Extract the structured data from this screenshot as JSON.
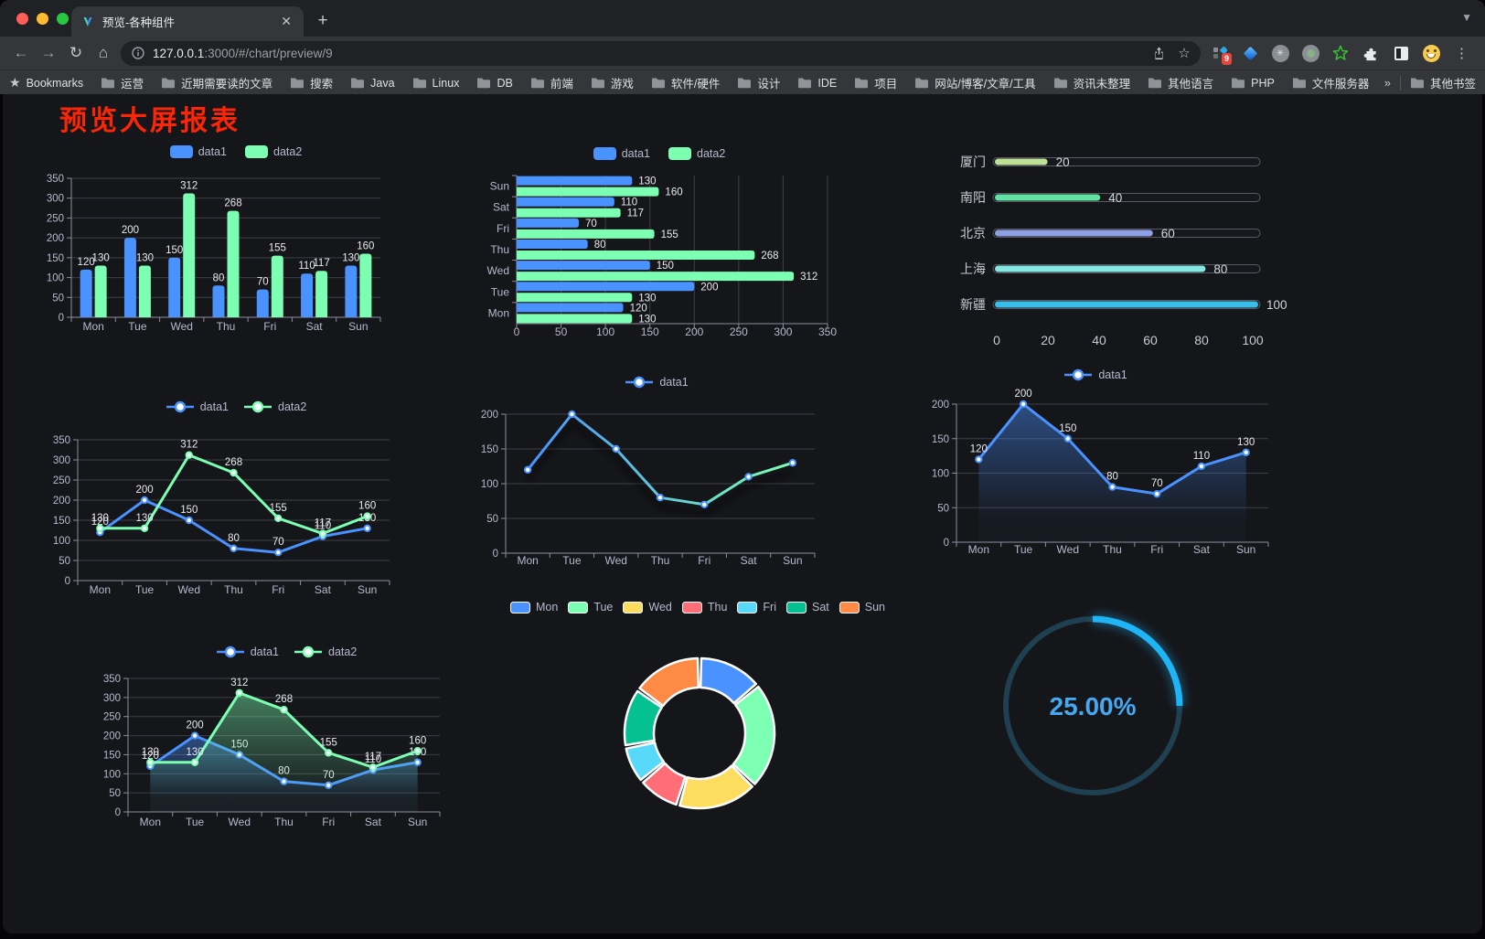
{
  "browser": {
    "tab": {
      "title": "预览-各种组件"
    },
    "url": {
      "host": "127.0.0.1",
      "rest": ":3000/#/chart/preview/9"
    },
    "bookmarks_bar": {
      "label": "Bookmarks",
      "folders": [
        "运营",
        "近期需要读的文章",
        "搜索",
        "Java",
        "Linux",
        "DB",
        "前端",
        "游戏",
        "软件/硬件",
        "设计",
        "IDE",
        "项目",
        "网站/博客/文章/工具",
        "资讯未整理",
        "其他语言",
        "PHP",
        "文件服务器"
      ],
      "overflow": "»",
      "other": "其他书签"
    },
    "extensions": [
      "apps-grid-icon",
      "gem-icon",
      "asterisk-circle-icon",
      "record-circle-icon",
      "star-outline-icon",
      "puzzle-icon",
      "reader-mode-icon",
      "emoji-icon"
    ],
    "extension_badge": "9"
  },
  "page": {
    "title": "预览大屏报表"
  },
  "chart_data": [
    {
      "id": "bar-grouped",
      "type": "bar",
      "categories": [
        "Mon",
        "Tue",
        "Wed",
        "Thu",
        "Fri",
        "Sat",
        "Sun"
      ],
      "series": [
        {
          "name": "data1",
          "color": "#4992ff",
          "values": [
            120,
            200,
            150,
            80,
            70,
            110,
            130
          ]
        },
        {
          "name": "data2",
          "color": "#7cffb2",
          "values": [
            130,
            130,
            312,
            268,
            155,
            117,
            160
          ]
        }
      ],
      "ymax": 350,
      "yticks": [
        0,
        50,
        100,
        150,
        200,
        250,
        300,
        350
      ],
      "legend": {
        "type": "rect"
      },
      "value_labels": true
    },
    {
      "id": "bar-horizontal",
      "type": "hbar",
      "categories": [
        "Mon",
        "Tue",
        "Wed",
        "Thu",
        "Fri",
        "Sat",
        "Sun"
      ],
      "series": [
        {
          "name": "data1",
          "color": "#4992ff",
          "values": [
            120,
            200,
            150,
            80,
            70,
            110,
            130
          ]
        },
        {
          "name": "data2",
          "color": "#7cffb2",
          "values": [
            130,
            130,
            312,
            268,
            155,
            117,
            160
          ]
        }
      ],
      "xmax": 350,
      "xticks": [
        0,
        50,
        100,
        150,
        200,
        250,
        300,
        350
      ],
      "legend": {
        "type": "rect"
      },
      "value_labels": true
    },
    {
      "id": "progress-bars",
      "type": "progress",
      "max": 100,
      "axis_ticks": [
        0,
        20,
        40,
        60,
        80,
        100
      ],
      "items": [
        {
          "label": "厦门",
          "value": 20,
          "color": "#bfe195"
        },
        {
          "label": "南阳",
          "value": 40,
          "color": "#60e2a5"
        },
        {
          "label": "北京",
          "value": 60,
          "color": "#8e9fe3"
        },
        {
          "label": "上海",
          "value": 80,
          "color": "#85e7e2"
        },
        {
          "label": "新疆",
          "value": 100,
          "color": "#38bde8"
        }
      ]
    },
    {
      "id": "line-two-series",
      "type": "line",
      "categories": [
        "Mon",
        "Tue",
        "Wed",
        "Thu",
        "Fri",
        "Sat",
        "Sun"
      ],
      "series": [
        {
          "name": "data1",
          "color": "#4992ff",
          "values": [
            120,
            200,
            150,
            80,
            70,
            110,
            130
          ]
        },
        {
          "name": "data2",
          "color": "#7cffb2",
          "values": [
            130,
            130,
            312,
            268,
            155,
            117,
            160
          ]
        }
      ],
      "ymax": 350,
      "yticks": [
        0,
        50,
        100,
        150,
        200,
        250,
        300,
        350
      ],
      "legend": {
        "type": "line"
      },
      "value_labels": true
    },
    {
      "id": "line-gradient",
      "type": "line",
      "categories": [
        "Mon",
        "Tue",
        "Wed",
        "Thu",
        "Fri",
        "Sat",
        "Sun"
      ],
      "series": [
        {
          "name": "data1",
          "color": "#4992ff",
          "values": [
            120,
            200,
            150,
            80,
            70,
            110,
            130
          ],
          "gradient_stroke": [
            "#4992ff",
            "#7cffb2"
          ],
          "shadow": true
        }
      ],
      "ymax": 200,
      "yticks": [
        0,
        50,
        100,
        150,
        200
      ],
      "legend": {
        "type": "line"
      },
      "value_labels": false
    },
    {
      "id": "line-area-single",
      "type": "line",
      "categories": [
        "Mon",
        "Tue",
        "Wed",
        "Thu",
        "Fri",
        "Sat",
        "Sun"
      ],
      "series": [
        {
          "name": "data1",
          "color": "#4992ff",
          "values": [
            120,
            200,
            150,
            80,
            70,
            110,
            130
          ],
          "area": true
        }
      ],
      "ymax": 200,
      "yticks": [
        0,
        50,
        100,
        150,
        200
      ],
      "legend": {
        "type": "line"
      },
      "value_labels": true
    },
    {
      "id": "area-two-series",
      "type": "line",
      "categories": [
        "Mon",
        "Tue",
        "Wed",
        "Thu",
        "Fri",
        "Sat",
        "Sun"
      ],
      "series": [
        {
          "name": "data1",
          "color": "#4992ff",
          "values": [
            120,
            200,
            150,
            80,
            70,
            110,
            130
          ],
          "area": true
        },
        {
          "name": "data2",
          "color": "#7cffb2",
          "values": [
            130,
            130,
            312,
            268,
            155,
            117,
            160
          ],
          "area": true
        }
      ],
      "ymax": 350,
      "yticks": [
        0,
        50,
        100,
        150,
        200,
        250,
        300,
        350
      ],
      "legend": {
        "type": "line"
      },
      "value_labels": true
    },
    {
      "id": "donut",
      "type": "pie",
      "categories": [
        "Mon",
        "Tue",
        "Wed",
        "Thu",
        "Fri",
        "Sat",
        "Sun"
      ],
      "values": [
        120,
        200,
        150,
        80,
        70,
        110,
        130
      ],
      "colors": [
        "#4992ff",
        "#7cffb2",
        "#fddd60",
        "#ff6e76",
        "#58d9f9",
        "#05c091",
        "#ff8a45"
      ],
      "legend": {
        "type": "pie"
      }
    },
    {
      "id": "gauge",
      "type": "gauge",
      "value": 25,
      "display": "25.00%",
      "color": "#1fb4f5",
      "track_color": "#1e4050",
      "text_color": "#46a8f1"
    }
  ]
}
